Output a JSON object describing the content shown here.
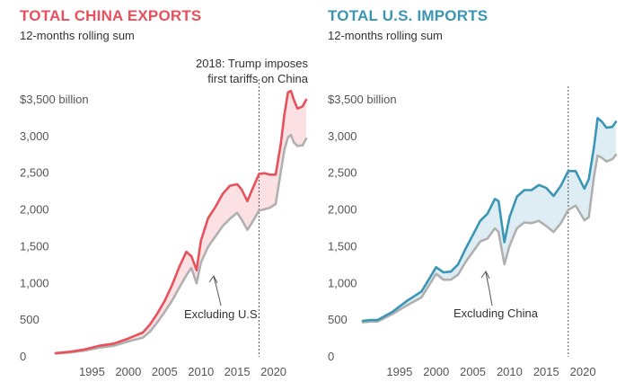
{
  "chart_data": [
    {
      "type": "line",
      "title": "TOTAL CHINA EXPORTS",
      "subtitle": "12-months rolling sum",
      "title_color": "#e8505b",
      "ytick_labels": [
        "$3,500 billion",
        "3,000",
        "2,500",
        "2,000",
        "1,500",
        "1,000",
        "500",
        "0"
      ],
      "ytick_values": [
        3500,
        3000,
        2500,
        2000,
        1500,
        1000,
        500,
        0
      ],
      "xtick_labels": [
        "1995",
        "2000",
        "2005",
        "2010",
        "2015",
        "2020"
      ],
      "xtick_values": [
        1995,
        2000,
        2005,
        2010,
        2015,
        2020
      ],
      "xlim": [
        1990,
        2025
      ],
      "ylim": [
        0,
        3500
      ],
      "grid": false,
      "annotation_line": {
        "x": 2018,
        "text_line1": "2018: Trump imposes",
        "text_line2": "first tariffs on China"
      },
      "series_label": "Excluding U.S.",
      "series": [
        {
          "color": "#e8505b",
          "x": [
            1990,
            1992,
            1994,
            1996,
            1998,
            2000,
            2002,
            2003,
            2004,
            2005,
            2006,
            2007,
            2008,
            2008.7,
            2009.4,
            2010,
            2011,
            2012,
            2013,
            2014,
            2015,
            2015.6,
            2016.4,
            2017,
            2018,
            2018.8,
            2019.5,
            2020.3,
            2021,
            2021.5,
            2022,
            2022.4,
            2022.8,
            2023.3,
            2024,
            2024.5
          ],
          "y": [
            50,
            70,
            100,
            150,
            180,
            250,
            330,
            440,
            590,
            760,
            970,
            1220,
            1430,
            1370,
            1180,
            1580,
            1890,
            2040,
            2220,
            2330,
            2350,
            2280,
            2120,
            2260,
            2490,
            2500,
            2480,
            2480,
            2900,
            3300,
            3600,
            3620,
            3500,
            3380,
            3410,
            3500
          ]
        },
        {
          "color": "#b0b0b0",
          "x": [
            1990,
            1992,
            1994,
            1996,
            1998,
            2000,
            2002,
            2003,
            2004,
            2005,
            2006,
            2007,
            2008,
            2008.7,
            2009.4,
            2010,
            2011,
            2012,
            2013,
            2014,
            2015,
            2015.6,
            2016.4,
            2017,
            2018,
            2018.8,
            2019.5,
            2020.3,
            2021,
            2021.5,
            2022,
            2022.4,
            2022.8,
            2023.3,
            2024,
            2024.5
          ],
          "y": [
            45,
            60,
            85,
            125,
            150,
            210,
            260,
            345,
            470,
            610,
            760,
            940,
            1110,
            1210,
            1000,
            1280,
            1500,
            1640,
            1780,
            1880,
            1960,
            1870,
            1730,
            1820,
            1990,
            2010,
            2030,
            2080,
            2520,
            2820,
            2990,
            3020,
            2920,
            2870,
            2880,
            2970
          ]
        }
      ]
    },
    {
      "type": "line",
      "title": "TOTAL U.S. IMPORTS",
      "subtitle": "12-months rolling sum",
      "title_color": "#3b95b5",
      "ytick_labels": [
        "$3,500 billion",
        "3,000",
        "2,500",
        "2,000",
        "1,500",
        "1,000",
        "500",
        "0"
      ],
      "ytick_values": [
        3500,
        3000,
        2500,
        2000,
        1500,
        1000,
        500,
        0
      ],
      "xtick_labels": [
        "1995",
        "2000",
        "2005",
        "2010",
        "2015",
        "2020"
      ],
      "xtick_values": [
        1995,
        2000,
        2005,
        2010,
        2015,
        2020
      ],
      "xlim": [
        1990,
        2025
      ],
      "ylim": [
        0,
        3500
      ],
      "grid": false,
      "annotation_line": {
        "x": 2018
      },
      "series_label": "Excluding China",
      "series": [
        {
          "color": "#3b95b5",
          "x": [
            1990,
            1991,
            1992,
            1994,
            1996,
            1998,
            2000,
            2001,
            2002,
            2003,
            2004,
            2005,
            2006,
            2007,
            2008,
            2008.5,
            2009.3,
            2010,
            2011,
            2012,
            2013,
            2014,
            2015,
            2016,
            2017,
            2018,
            2019,
            2020.2,
            2020.8,
            2021.5,
            2022,
            2022.6,
            2023.2,
            2024,
            2024.5
          ],
          "y": [
            490,
            500,
            500,
            610,
            760,
            890,
            1220,
            1150,
            1160,
            1260,
            1470,
            1660,
            1850,
            1950,
            2150,
            2120,
            1560,
            1900,
            2180,
            2270,
            2270,
            2340,
            2300,
            2190,
            2330,
            2530,
            2530,
            2290,
            2420,
            2850,
            3250,
            3200,
            3120,
            3130,
            3200
          ]
        },
        {
          "color": "#b0b0b0",
          "x": [
            1990,
            1991,
            1992,
            1994,
            1996,
            1998,
            2000,
            2001,
            2002,
            2003,
            2004,
            2005,
            2006,
            2007,
            2008,
            2008.5,
            2009.3,
            2010,
            2011,
            2012,
            2013,
            2014,
            2015,
            2016,
            2017,
            2018,
            2019,
            2020.2,
            2020.8,
            2021.5,
            2022,
            2022.6,
            2023.2,
            2024,
            2024.5
          ],
          "y": [
            470,
            480,
            480,
            580,
            700,
            810,
            1130,
            1050,
            1050,
            1120,
            1290,
            1430,
            1570,
            1610,
            1750,
            1700,
            1260,
            1510,
            1750,
            1830,
            1820,
            1850,
            1780,
            1700,
            1820,
            2000,
            2060,
            1860,
            1900,
            2450,
            2740,
            2710,
            2660,
            2690,
            2750
          ]
        }
      ]
    }
  ]
}
